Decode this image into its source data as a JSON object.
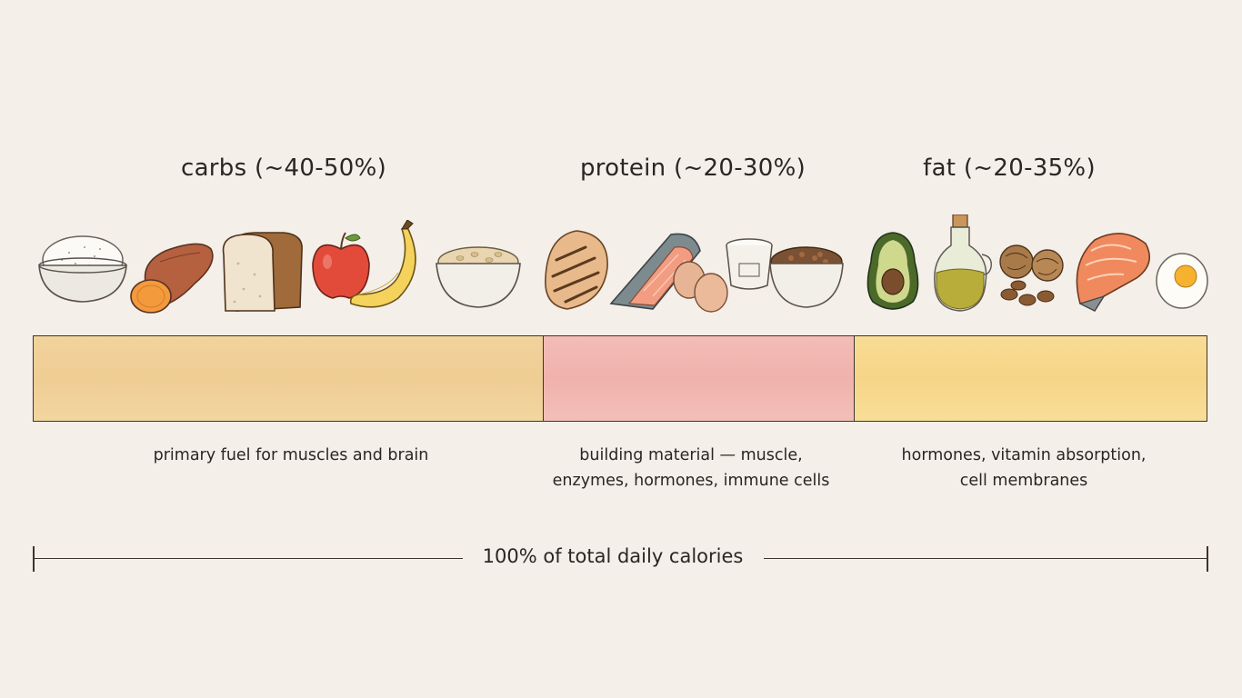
{
  "headings": {
    "carbs": "carbs (~40-50%)",
    "protein": "protein (~20-30%)",
    "fat": "fat (~20-35%)"
  },
  "foods": {
    "carbs": [
      "rice-bowl-icon",
      "sweet-potato-icon",
      "bread-icon",
      "apple-icon",
      "banana-icon",
      "oats-bowl-icon"
    ],
    "protein": [
      "chicken-breast-icon",
      "fish-fillet-icon",
      "eggs-icon",
      "yogurt-cup-icon",
      "lentils-bowl-icon"
    ],
    "fat": [
      "avocado-icon",
      "olive-oil-icon",
      "nuts-icon",
      "salmon-steak-icon",
      "boiled-egg-icon"
    ]
  },
  "bar": {
    "segments": [
      {
        "key": "carbs",
        "share": 0.435,
        "color": "#f0cf96"
      },
      {
        "key": "protein",
        "share": 0.265,
        "color": "#f1b6b0"
      },
      {
        "key": "fat",
        "share": 0.3,
        "color": "#f7d98e"
      }
    ]
  },
  "descriptions": {
    "carbs": [
      "primary fuel for muscles and brain"
    ],
    "protein": [
      "building material — muscle,",
      "enzymes, hormones, immune cells"
    ],
    "fat": [
      "hormones, vitamin absorption,",
      "cell membranes"
    ]
  },
  "total": {
    "label": "100% of total daily calories"
  }
}
